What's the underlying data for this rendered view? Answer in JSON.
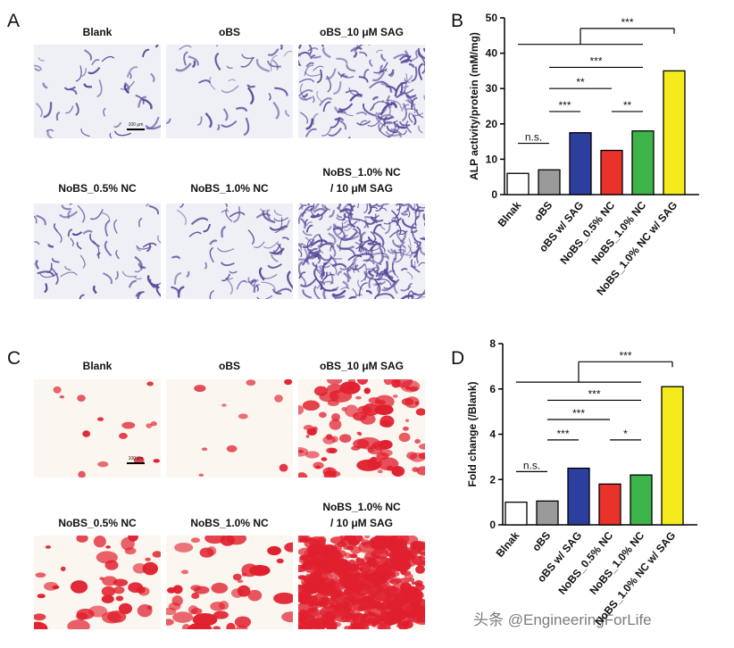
{
  "panels": {
    "labels": [
      "A",
      "B",
      "C",
      "D"
    ]
  },
  "micrographs": [
    {
      "captions": [
        [
          "Blank"
        ],
        [
          "oBS"
        ],
        [
          "oBS_10 μM SAG"
        ],
        [
          "NoBS_0.5% NC"
        ],
        [
          "NoBS_1.0% NC"
        ],
        [
          "NoBS_1.0% NC",
          "/ 10 μM SAG"
        ]
      ],
      "scale_bar": "100 μm"
    },
    {
      "captions": [
        [
          "Blank"
        ],
        [
          "oBS"
        ],
        [
          "oBS_10 μM SAG"
        ],
        [
          "NoBS_0.5% NC"
        ],
        [
          "NoBS_1.0% NC"
        ],
        [
          "NoBS_1.0% NC",
          "/ 10 μM SAG"
        ]
      ],
      "scale_bar": "100 μm"
    }
  ],
  "chart_data": [
    {
      "type": "bar",
      "ylabel": "ALP activity/protein  (mM/mg)",
      "categories": [
        "Blnak",
        "oBS",
        "oBS w/ SAG",
        "NoBS_0.5% NC",
        "NoBS_1.0% NC",
        "NoBS_1.0% NC w/ SAG"
      ],
      "values": [
        6,
        7,
        17.5,
        12.5,
        18,
        35
      ],
      "colors": [
        "#ffffff",
        "#9a9a9a",
        "#2d3f9e",
        "#e8322a",
        "#3cb44a",
        "#f5ea1c"
      ],
      "ylim": [
        0,
        50
      ],
      "yticks": [
        0,
        10,
        20,
        30,
        40,
        50
      ],
      "annotations": [
        "***",
        "***",
        "**",
        "***",
        "**",
        "n.s."
      ]
    },
    {
      "type": "bar",
      "ylabel": "Fold change (/Blank)",
      "categories": [
        "Blnak",
        "oBS",
        "oBS w/ SAG",
        "NoBS_0.5% NC",
        "NoBS_1.0% NC",
        "NoBS_1.0% NC w/ SAG"
      ],
      "values": [
        1.0,
        1.05,
        2.5,
        1.8,
        2.2,
        6.1
      ],
      "colors": [
        "#ffffff",
        "#9a9a9a",
        "#2d3f9e",
        "#e8322a",
        "#3cb44a",
        "#f5ea1c"
      ],
      "ylim": [
        0,
        8
      ],
      "yticks": [
        0,
        2,
        4,
        6,
        8
      ],
      "annotations": [
        "***",
        "***",
        "***",
        "***",
        "*",
        "n.s."
      ]
    }
  ],
  "watermark": "头条 @EngineeringForLife"
}
